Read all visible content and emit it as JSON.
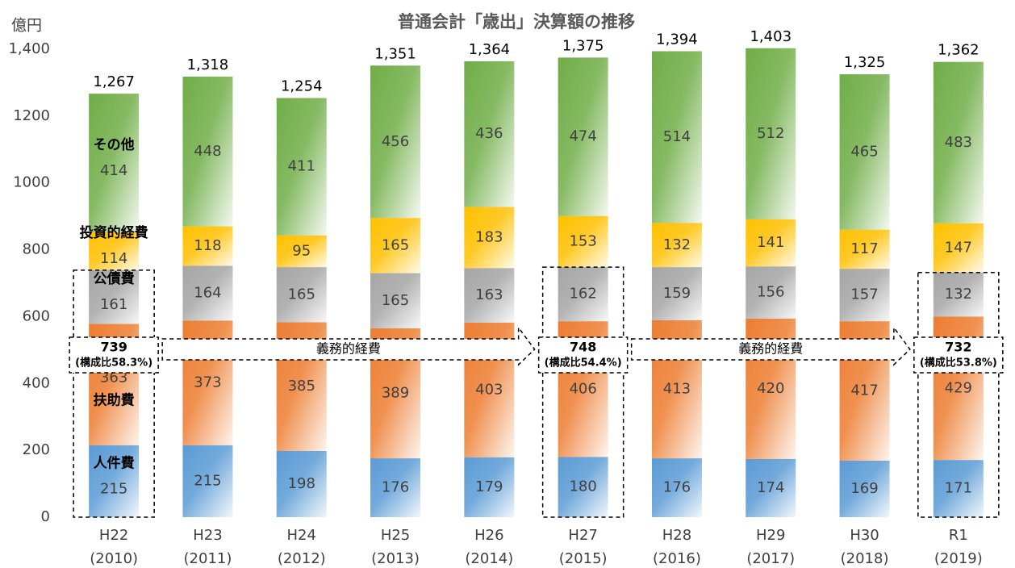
{
  "chart_data": {
    "type": "stacked_bar",
    "title": "普通会計「歳出」決算額の推移",
    "y_unit": "億円",
    "categories": [
      [
        "H22",
        "(2010)"
      ],
      [
        "H23",
        "(2011)"
      ],
      [
        "H24",
        "(2012)"
      ],
      [
        "H25",
        "(2013)"
      ],
      [
        "H26",
        "(2014)"
      ],
      [
        "H27",
        "(2015)"
      ],
      [
        "H28",
        "(2016)"
      ],
      [
        "H29",
        "(2017)"
      ],
      [
        "H30",
        "(2018)"
      ],
      [
        "R1",
        "(2019)"
      ]
    ],
    "series": [
      {
        "name": "人件費",
        "color": "#5b9bd5",
        "values": [
          215,
          215,
          198,
          176,
          179,
          180,
          176,
          174,
          169,
          171
        ]
      },
      {
        "name": "扶助費",
        "color": "#ed7d31",
        "values": [
          363,
          373,
          385,
          389,
          403,
          406,
          413,
          420,
          417,
          429
        ]
      },
      {
        "name": "公債費",
        "color": "#a5a5a5",
        "values": [
          161,
          164,
          165,
          165,
          163,
          162,
          159,
          156,
          157,
          132
        ]
      },
      {
        "name": "投資的経費",
        "color": "#ffc000",
        "values": [
          114,
          118,
          95,
          165,
          183,
          153,
          132,
          141,
          117,
          147
        ]
      },
      {
        "name": "その他",
        "color": "#70ad47",
        "values": [
          414,
          448,
          411,
          456,
          436,
          474,
          514,
          512,
          465,
          483
        ]
      }
    ],
    "totals": {
      "values": [
        1267,
        1318,
        1254,
        1351,
        1364,
        1375,
        1394,
        1403,
        1325,
        1362
      ],
      "value_labels": [
        "1,267",
        "1,318",
        "1,254",
        "1,351",
        "1,364",
        "1,375",
        "1,394",
        "1,403",
        "1,325",
        "1,362"
      ]
    },
    "mandatory": {
      "values": [
        739,
        null,
        null,
        null,
        null,
        748,
        null,
        null,
        null,
        732
      ],
      "share_labels": [
        "(構成比58.3%)",
        null,
        null,
        null,
        null,
        "(構成比54.4%)",
        null,
        null,
        null,
        "(構成比53.8%)"
      ],
      "arrow_label": "義務的経費"
    },
    "ylim": [
      0,
      1400
    ],
    "yticks": [
      0,
      200,
      400,
      600,
      800,
      1000,
      1200,
      {
        "value": 1400,
        "label": "1,400"
      }
    ],
    "grid": false
  }
}
